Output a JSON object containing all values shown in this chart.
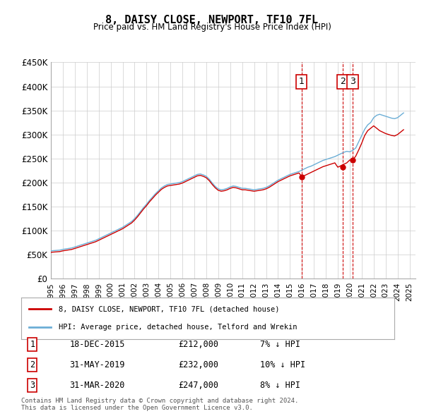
{
  "title": "8, DAISY CLOSE, NEWPORT, TF10 7FL",
  "subtitle": "Price paid vs. HM Land Registry's House Price Index (HPI)",
  "ylabel": "",
  "ylim": [
    0,
    450000
  ],
  "yticks": [
    0,
    50000,
    100000,
    150000,
    200000,
    250000,
    300000,
    350000,
    400000,
    450000
  ],
  "ytick_labels": [
    "£0",
    "£50K",
    "£100K",
    "£150K",
    "£200K",
    "£250K",
    "£300K",
    "£350K",
    "£400K",
    "£450K"
  ],
  "xlim_start": 1995.0,
  "xlim_end": 2025.5,
  "hpi_color": "#6baed6",
  "price_color": "#cc0000",
  "transaction_color": "#cc0000",
  "grid_color": "#cccccc",
  "background_color": "#ffffff",
  "transactions": [
    {
      "label": "1",
      "date": "18-DEC-2015",
      "x": 2015.96,
      "price": 212000,
      "pct": "7%",
      "direction": "↓"
    },
    {
      "label": "2",
      "date": "31-MAY-2019",
      "x": 2019.42,
      "price": 232000,
      "pct": "10%",
      "direction": "↓"
    },
    {
      "label": "3",
      "date": "31-MAR-2020",
      "x": 2020.25,
      "price": 247000,
      "pct": "8%",
      "direction": "↓"
    }
  ],
  "legend_line1": "8, DAISY CLOSE, NEWPORT, TF10 7FL (detached house)",
  "legend_line2": "HPI: Average price, detached house, Telford and Wrekin",
  "footer1": "Contains HM Land Registry data © Crown copyright and database right 2024.",
  "footer2": "This data is licensed under the Open Government Licence v3.0.",
  "hpi_x": [
    1995.0,
    1995.25,
    1995.5,
    1995.75,
    1996.0,
    1996.25,
    1996.5,
    1996.75,
    1997.0,
    1997.25,
    1997.5,
    1997.75,
    1998.0,
    1998.25,
    1998.5,
    1998.75,
    1999.0,
    1999.25,
    1999.5,
    1999.75,
    2000.0,
    2000.25,
    2000.5,
    2000.75,
    2001.0,
    2001.25,
    2001.5,
    2001.75,
    2002.0,
    2002.25,
    2002.5,
    2002.75,
    2003.0,
    2003.25,
    2003.5,
    2003.75,
    2004.0,
    2004.25,
    2004.5,
    2004.75,
    2005.0,
    2005.25,
    2005.5,
    2005.75,
    2006.0,
    2006.25,
    2006.5,
    2006.75,
    2007.0,
    2007.25,
    2007.5,
    2007.75,
    2008.0,
    2008.25,
    2008.5,
    2008.75,
    2009.0,
    2009.25,
    2009.5,
    2009.75,
    2010.0,
    2010.25,
    2010.5,
    2010.75,
    2011.0,
    2011.25,
    2011.5,
    2011.75,
    2012.0,
    2012.25,
    2012.5,
    2012.75,
    2013.0,
    2013.25,
    2013.5,
    2013.75,
    2014.0,
    2014.25,
    2014.5,
    2014.75,
    2015.0,
    2015.25,
    2015.5,
    2015.75,
    2016.0,
    2016.25,
    2016.5,
    2016.75,
    2017.0,
    2017.25,
    2017.5,
    2017.75,
    2018.0,
    2018.25,
    2018.5,
    2018.75,
    2019.0,
    2019.25,
    2019.5,
    2019.75,
    2020.0,
    2020.25,
    2020.5,
    2020.75,
    2021.0,
    2021.25,
    2021.5,
    2021.75,
    2022.0,
    2022.25,
    2022.5,
    2022.75,
    2023.0,
    2023.25,
    2023.5,
    2023.75,
    2024.0,
    2024.25,
    2024.5
  ],
  "hpi_y": [
    58000,
    58500,
    59000,
    59500,
    61000,
    62000,
    63000,
    64000,
    66000,
    68000,
    70000,
    72000,
    74000,
    76000,
    78000,
    80000,
    83000,
    86000,
    89000,
    92000,
    95000,
    98000,
    101000,
    104000,
    107000,
    111000,
    115000,
    119000,
    125000,
    132000,
    140000,
    148000,
    155000,
    163000,
    170000,
    177000,
    183000,
    189000,
    193000,
    196000,
    197000,
    198000,
    199000,
    200000,
    202000,
    205000,
    208000,
    211000,
    214000,
    217000,
    218000,
    216000,
    213000,
    207000,
    199000,
    192000,
    187000,
    185000,
    186000,
    188000,
    191000,
    193000,
    192000,
    190000,
    188000,
    188000,
    187000,
    186000,
    185000,
    186000,
    187000,
    188000,
    190000,
    193000,
    197000,
    201000,
    205000,
    208000,
    211000,
    214000,
    217000,
    219000,
    221000,
    223000,
    226000,
    229000,
    232000,
    234000,
    237000,
    240000,
    243000,
    246000,
    248000,
    250000,
    252000,
    254000,
    257000,
    260000,
    263000,
    265000,
    264000,
    267000,
    272000,
    285000,
    298000,
    311000,
    320000,
    325000,
    335000,
    340000,
    342000,
    340000,
    338000,
    336000,
    334000,
    333000,
    335000,
    340000,
    345000
  ],
  "price_x": [
    1995.0,
    1995.25,
    1995.5,
    1995.75,
    1996.0,
    1996.25,
    1996.5,
    1996.75,
    1997.0,
    1997.25,
    1997.5,
    1997.75,
    1998.0,
    1998.25,
    1998.5,
    1998.75,
    1999.0,
    1999.25,
    1999.5,
    1999.75,
    2000.0,
    2000.25,
    2000.5,
    2000.75,
    2001.0,
    2001.25,
    2001.5,
    2001.75,
    2002.0,
    2002.25,
    2002.5,
    2002.75,
    2003.0,
    2003.25,
    2003.5,
    2003.75,
    2004.0,
    2004.25,
    2004.5,
    2004.75,
    2005.0,
    2005.25,
    2005.5,
    2005.75,
    2006.0,
    2006.25,
    2006.5,
    2006.75,
    2007.0,
    2007.25,
    2007.5,
    2007.75,
    2008.0,
    2008.25,
    2008.5,
    2008.75,
    2009.0,
    2009.25,
    2009.5,
    2009.75,
    2010.0,
    2010.25,
    2010.5,
    2010.75,
    2011.0,
    2011.25,
    2011.5,
    2011.75,
    2012.0,
    2012.25,
    2012.5,
    2012.75,
    2013.0,
    2013.25,
    2013.5,
    2013.75,
    2014.0,
    2014.25,
    2014.5,
    2014.75,
    2015.0,
    2015.25,
    2015.5,
    2015.75,
    2016.0,
    2016.25,
    2016.5,
    2016.75,
    2017.0,
    2017.25,
    2017.5,
    2017.75,
    2018.0,
    2018.25,
    2018.5,
    2018.75,
    2019.0,
    2019.25,
    2019.5,
    2019.75,
    2020.0,
    2020.25,
    2020.5,
    2020.75,
    2021.0,
    2021.25,
    2021.5,
    2021.75,
    2022.0,
    2022.25,
    2022.5,
    2022.75,
    2023.0,
    2023.25,
    2023.5,
    2023.75,
    2024.0,
    2024.25,
    2024.5
  ],
  "price_y": [
    55000,
    55500,
    56000,
    56500,
    58000,
    59000,
    60000,
    61000,
    63000,
    65000,
    67000,
    69000,
    71000,
    73000,
    75000,
    77000,
    80000,
    83000,
    86000,
    89000,
    92000,
    95000,
    98000,
    101000,
    104000,
    108000,
    112000,
    116000,
    122000,
    129000,
    137000,
    145000,
    152000,
    160000,
    167000,
    174000,
    180000,
    186000,
    190000,
    193000,
    194000,
    195000,
    196000,
    197000,
    199000,
    202000,
    205000,
    208000,
    211000,
    214000,
    215000,
    213000,
    210000,
    204000,
    196000,
    189000,
    184000,
    182000,
    183000,
    185000,
    188000,
    190000,
    189000,
    187000,
    185000,
    185000,
    184000,
    183000,
    182000,
    183000,
    184000,
    185000,
    187000,
    190000,
    194000,
    198000,
    202000,
    205000,
    208000,
    211000,
    214000,
    216000,
    218000,
    220000,
    212000,
    215000,
    218000,
    221000,
    224000,
    227000,
    230000,
    233000,
    235000,
    237000,
    239000,
    241000,
    232000,
    235000,
    238000,
    241000,
    247000,
    247000,
    255000,
    268000,
    282000,
    298000,
    308000,
    313000,
    318000,
    313000,
    308000,
    305000,
    302000,
    300000,
    298000,
    297000,
    300000,
    305000,
    310000
  ]
}
